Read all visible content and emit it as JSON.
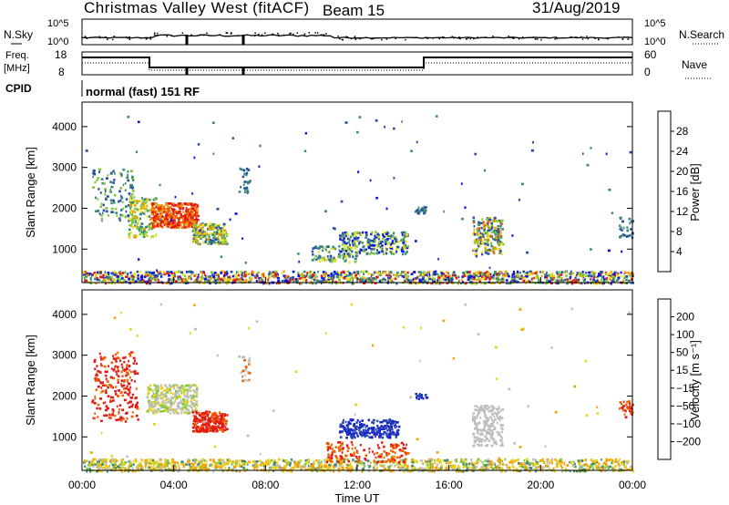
{
  "header": {
    "station": "Christmas Valley West (fitACF)",
    "beam": "Beam 15",
    "date": "31/Aug/2019",
    "mode": "normal (fast) 151 RF"
  },
  "top_panels": {
    "nsky_label": "N.Sky",
    "nsearch_label": "N.Search",
    "freq_label_1": "Freq.",
    "freq_label_2": "[MHz]",
    "nave_label": "Nave",
    "cpid_label": "CPID",
    "noise_tick_top": "10^5",
    "noise_tick_bottom": "10^0",
    "freq_tick_top": "18",
    "freq_tick_bottom": "8",
    "nave_tick_top": "60",
    "nave_tick_bottom": "0"
  },
  "x_axis": {
    "label": "Time UT",
    "ticks": [
      "00:00",
      "04:00",
      "08:00",
      "12:00",
      "16:00",
      "20:00",
      "00:00"
    ]
  },
  "power_panel": {
    "ylabel": "Slant Range [km]",
    "yticks": [
      "1000",
      "2000",
      "3000",
      "4000"
    ],
    "cbar_label": "Power [dB]",
    "cbar_ticks": [
      "4",
      "8",
      "12",
      "16",
      "20",
      "24",
      "28"
    ],
    "cbar_colors": [
      "#0a14e6",
      "#2a4ca8",
      "#3a8a78",
      "#80c83c",
      "#e8e01e",
      "#f5a000",
      "#f06000",
      "#e01818"
    ]
  },
  "velocity_panel": {
    "ylabel": "Slant Range [km]",
    "yticks": [
      "1000",
      "2000",
      "3000",
      "4000"
    ],
    "cbar_label": "Velocity [m s⁻¹]",
    "cbar_ticks": [
      "200",
      "100",
      "50",
      "15",
      "−15",
      "−50",
      "−100",
      "−200"
    ],
    "cbar_colors": [
      "#1a28c8",
      "#2a4ca8",
      "#3a8a78",
      "#80c83c",
      "#bebebe",
      "#e8d21e",
      "#f5a000",
      "#f06000",
      "#e01818"
    ]
  },
  "chart_data": [
    {
      "type": "heatmap",
      "title": "Power",
      "xlabel": "Time UT",
      "ylabel": "Slant Range [km]",
      "xlim": [
        0,
        24
      ],
      "ylim": [
        180,
        4600
      ],
      "colorbar": {
        "label": "Power [dB]",
        "range": [
          0,
          32
        ]
      },
      "regions": [
        {
          "t": [
            0.4,
            6.3
          ],
          "r": [
            1150,
            3000
          ],
          "power": "mixed 8–28, peak ~28 near 04:00"
        },
        {
          "t": [
            3.0,
            5.0
          ],
          "r": [
            1550,
            2200
          ],
          "power": "~28"
        },
        {
          "t": [
            10.0,
            14.5
          ],
          "r": [
            800,
            1450
          ],
          "power": "8–20"
        },
        {
          "t": [
            17.0,
            18.3
          ],
          "r": [
            800,
            1800
          ],
          "power": "12–28"
        },
        {
          "t": [
            0.0,
            24.0
          ],
          "r": [
            180,
            500
          ],
          "power": "near-range mixed 4–28"
        }
      ]
    },
    {
      "type": "heatmap",
      "title": "Velocity",
      "xlabel": "Time UT",
      "ylabel": "Slant Range [km]",
      "xlim": [
        0,
        24
      ],
      "ylim": [
        180,
        4600
      ],
      "colorbar": {
        "label": "Velocity [m s⁻¹]",
        "range": [
          -250,
          250
        ]
      },
      "regions": [
        {
          "t": [
            0.4,
            6.3
          ],
          "r": [
            1150,
            3100
          ],
          "velocity": "−100 to −200 (red), ±15 (grey) near 03:00–05:00"
        },
        {
          "t": [
            11.0,
            13.8
          ],
          "r": [
            1000,
            1450
          ],
          "velocity": "100 to 200 (blue)"
        },
        {
          "t": [
            10.5,
            14.2
          ],
          "r": [
            350,
            1000
          ],
          "velocity": "−100 to −200 streak"
        },
        {
          "t": [
            17.0,
            18.3
          ],
          "r": [
            800,
            1800
          ],
          "velocity": "±15 (grey)"
        },
        {
          "t": [
            0.0,
            24.0
          ],
          "r": [
            180,
            500
          ],
          "velocity": "near-range mixed −50 to 50"
        }
      ]
    }
  ]
}
